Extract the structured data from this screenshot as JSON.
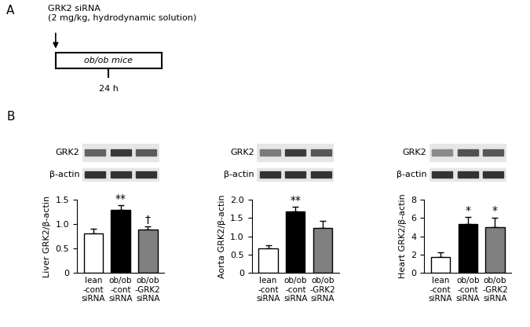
{
  "panel_labels": [
    "A",
    "B"
  ],
  "protocol": {
    "treatment": "GRK2 siRNA\n(2 mg/kg, hydrodynamic solution)",
    "animal": "ob/ob mice",
    "duration": "24 h"
  },
  "chart_data": [
    {
      "type": "bar",
      "y_label": "Liver GRK2/β-actin",
      "categories": [
        "lean\n-cont\nsiRNA",
        "ob/ob\n-cont\nsiRNA",
        "ob/ob\n-GRK2\nsiRNA"
      ],
      "values": [
        0.8,
        1.28,
        0.88
      ],
      "errors": [
        0.1,
        0.1,
        0.07
      ],
      "colors": [
        "#ffffff",
        "#000000",
        "#808080"
      ],
      "significance": [
        null,
        "**",
        "†"
      ],
      "blot_labels": [
        "GRK2",
        "β-actin"
      ],
      "ylim": [
        0,
        1.5
      ],
      "yticks": [
        0,
        0.5,
        {
          "value": 1,
          "label": "1.0"
        },
        1.5
      ]
    },
    {
      "type": "bar",
      "y_label": "Aorta GRK2/β-actin",
      "categories": [
        "lean\n-cont\nsiRNA",
        "ob/ob\n-cont\nsiRNA",
        "ob/ob\n-GRK2\nsiRNA"
      ],
      "values": [
        0.67,
        1.67,
        1.23
      ],
      "errors": [
        0.08,
        0.13,
        0.18
      ],
      "colors": [
        "#ffffff",
        "#000000",
        "#808080"
      ],
      "significance": [
        null,
        "**",
        null
      ],
      "blot_labels": [
        "GRK2",
        "β-actin"
      ],
      "ylim": [
        0,
        2
      ],
      "yticks": [
        0,
        0.5,
        {
          "value": 1,
          "label": "1.0"
        },
        1.5,
        {
          "value": 2,
          "label": "2.0"
        }
      ]
    },
    {
      "type": "bar",
      "y_label": "Heart GRK2/β-actin",
      "categories": [
        "lean\n-cont\nsiRNA",
        "ob/ob\n-cont\nsiRNA",
        "ob/ob\n-GRK2\nsiRNA"
      ],
      "values": [
        1.75,
        5.3,
        4.95
      ],
      "errors": [
        0.5,
        0.8,
        1.1
      ],
      "colors": [
        "#ffffff",
        "#000000",
        "#808080"
      ],
      "significance": [
        null,
        "*",
        "*"
      ],
      "blot_labels": [
        "GRK2",
        "β-actin"
      ],
      "ylim": [
        0,
        8
      ],
      "yticks": [
        0,
        2,
        4,
        6,
        8
      ]
    }
  ]
}
